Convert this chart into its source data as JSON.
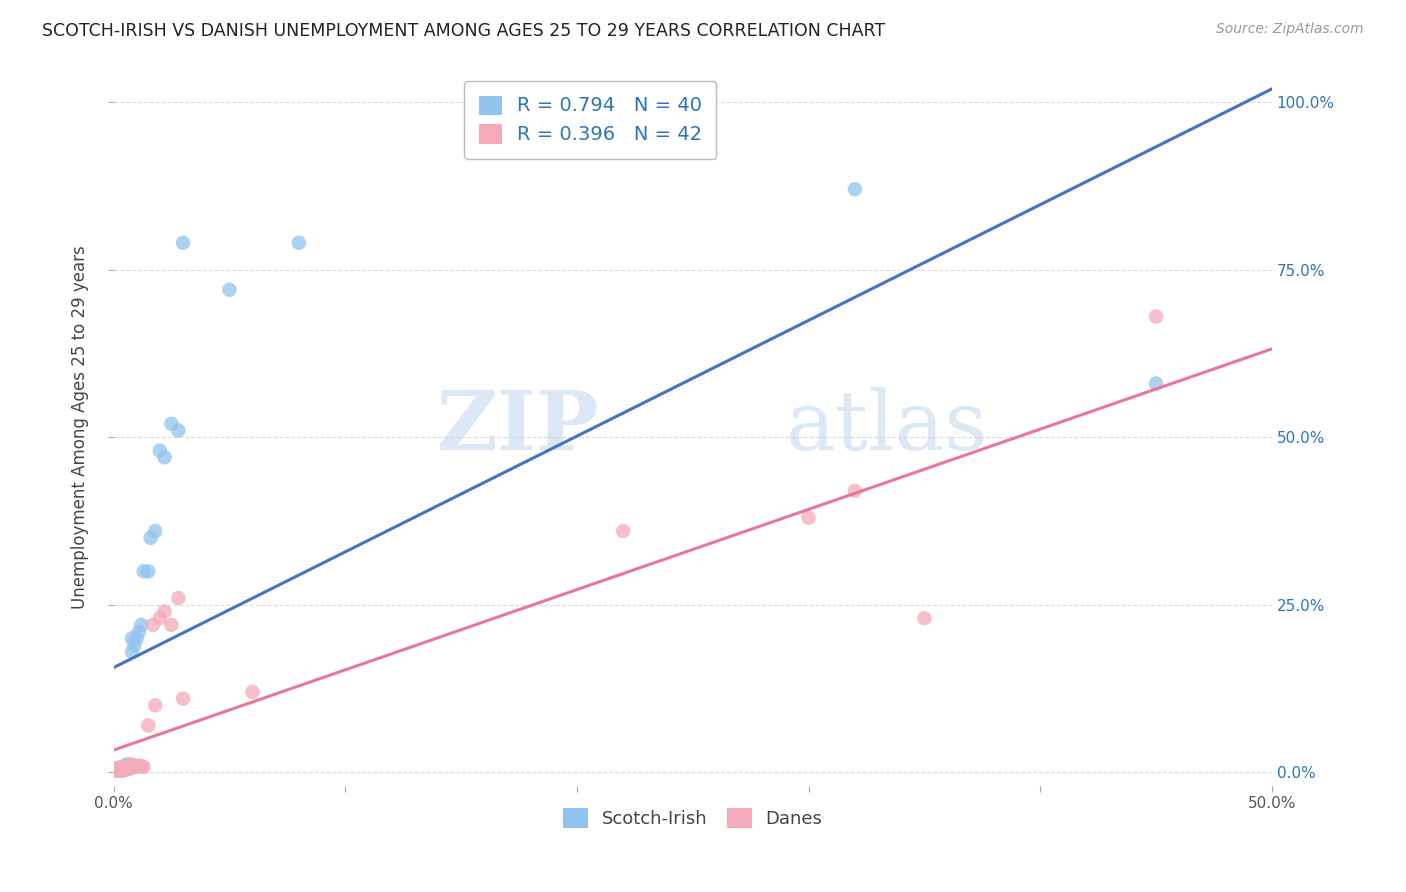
{
  "title": "SCOTCH-IRISH VS DANISH UNEMPLOYMENT AMONG AGES 25 TO 29 YEARS CORRELATION CHART",
  "source": "Source: ZipAtlas.com",
  "ylabel": "Unemployment Among Ages 25 to 29 years",
  "xlim": [
    0.0,
    0.5
  ],
  "ylim": [
    -0.02,
    1.05
  ],
  "xticks": [
    0.0,
    0.1,
    0.2,
    0.3,
    0.4,
    0.5
  ],
  "xticklabels": [
    "0.0%",
    "",
    "",
    "",
    "",
    "50.0%"
  ],
  "yticks": [
    0.0,
    0.25,
    0.5,
    0.75,
    1.0
  ],
  "yticklabels_right": [
    "0.0%",
    "25.0%",
    "50.0%",
    "75.0%",
    "100.0%"
  ],
  "background_color": "#ffffff",
  "grid_color": "#cccccc",
  "watermark_zip": "ZIP",
  "watermark_atlas": "atlas",
  "scotch_irish_color": "#91C4EE",
  "danish_color": "#F4AABA",
  "scotch_irish_line_color": "#4472C4",
  "danish_line_color": "#E8769A",
  "scotch_irish_R": 0.794,
  "scotch_irish_N": 40,
  "danish_R": 0.396,
  "danish_N": 42,
  "scotch_irish_x": [
    0.001,
    0.001,
    0.002,
    0.002,
    0.002,
    0.002,
    0.003,
    0.003,
    0.003,
    0.003,
    0.004,
    0.004,
    0.004,
    0.005,
    0.005,
    0.005,
    0.006,
    0.006,
    0.006,
    0.007,
    0.007,
    0.008,
    0.008,
    0.009,
    0.01,
    0.011,
    0.012,
    0.013,
    0.015,
    0.016,
    0.018,
    0.02,
    0.022,
    0.025,
    0.028,
    0.03,
    0.05,
    0.08,
    0.32,
    0.45
  ],
  "scotch_irish_y": [
    0.003,
    0.005,
    0.003,
    0.004,
    0.006,
    0.007,
    0.004,
    0.005,
    0.006,
    0.007,
    0.003,
    0.005,
    0.008,
    0.004,
    0.006,
    0.01,
    0.005,
    0.008,
    0.012,
    0.006,
    0.01,
    0.18,
    0.2,
    0.19,
    0.2,
    0.21,
    0.22,
    0.3,
    0.3,
    0.35,
    0.36,
    0.48,
    0.47,
    0.52,
    0.51,
    0.79,
    0.72,
    0.79,
    0.87,
    0.58
  ],
  "danish_x": [
    0.001,
    0.001,
    0.001,
    0.002,
    0.002,
    0.002,
    0.002,
    0.003,
    0.003,
    0.003,
    0.003,
    0.004,
    0.004,
    0.004,
    0.005,
    0.005,
    0.005,
    0.006,
    0.006,
    0.007,
    0.007,
    0.008,
    0.008,
    0.009,
    0.01,
    0.011,
    0.012,
    0.013,
    0.015,
    0.017,
    0.018,
    0.02,
    0.022,
    0.025,
    0.028,
    0.03,
    0.06,
    0.22,
    0.3,
    0.32,
    0.35,
    0.45
  ],
  "danish_y": [
    0.003,
    0.004,
    0.005,
    0.003,
    0.004,
    0.005,
    0.006,
    0.003,
    0.004,
    0.005,
    0.007,
    0.003,
    0.005,
    0.008,
    0.004,
    0.006,
    0.009,
    0.005,
    0.008,
    0.006,
    0.01,
    0.007,
    0.012,
    0.009,
    0.008,
    0.01,
    0.009,
    0.008,
    0.07,
    0.22,
    0.1,
    0.23,
    0.24,
    0.22,
    0.26,
    0.11,
    0.12,
    0.36,
    0.38,
    0.42,
    0.23,
    0.68
  ],
  "legend_label_scotch": "Scotch-Irish",
  "legend_label_danish": "Danes",
  "legend_text_color": "#2E75B6",
  "legend_R_N_color": "#2E75B6"
}
